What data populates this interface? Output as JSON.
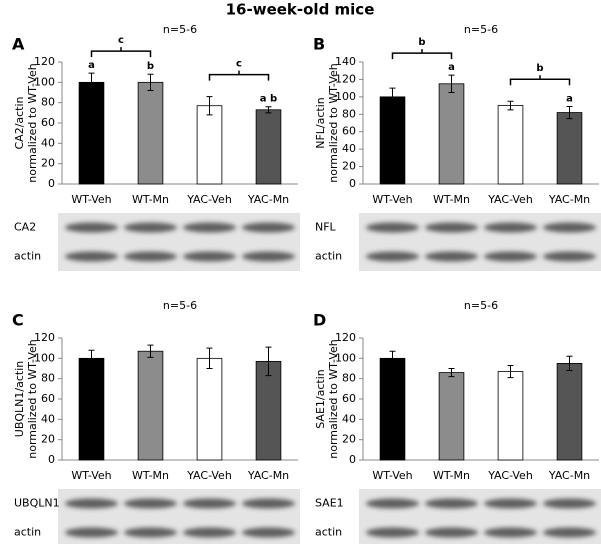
{
  "title": "16-week-old mice",
  "chart_data": [
    {
      "type": "bar",
      "panel": "A",
      "subtitle": "n=5-6",
      "ylabel": [
        "CA2/actin",
        "normalized to WT-Veh"
      ],
      "categories": [
        "WT-Veh",
        "WT-Mn",
        "YAC-Veh",
        "YAC-Mn"
      ],
      "values": [
        100,
        100,
        77,
        73
      ],
      "errors": [
        9,
        8,
        9,
        3
      ],
      "colors": [
        "#000000",
        "#8c8c8c",
        "#ffffff",
        "#555555"
      ],
      "ylim": [
        0,
        120
      ],
      "yticks": [
        0,
        20,
        40,
        60,
        80,
        100,
        120
      ],
      "bar_letters": [
        "a",
        "b",
        null,
        "a b"
      ],
      "brackets": [
        {
          "from": 0,
          "to": 1,
          "label": "c"
        },
        {
          "from": 2,
          "to": 3,
          "label": "c"
        }
      ],
      "blot_labels": [
        "CA2",
        "actin"
      ]
    },
    {
      "type": "bar",
      "panel": "B",
      "subtitle": "n=5-6",
      "ylabel": [
        "NFL/actin",
        "normalized to WT-Veh"
      ],
      "categories": [
        "WT-Veh",
        "WT-Mn",
        "YAC-Veh",
        "YAC-Mn"
      ],
      "values": [
        100,
        115,
        90,
        82
      ],
      "errors": [
        10,
        10,
        5,
        7
      ],
      "colors": [
        "#000000",
        "#8c8c8c",
        "#ffffff",
        "#555555"
      ],
      "ylim": [
        0,
        140
      ],
      "yticks": [
        0,
        20,
        40,
        60,
        80,
        100,
        120,
        140
      ],
      "bar_letters": [
        null,
        "a",
        null,
        "a"
      ],
      "brackets": [
        {
          "from": 0,
          "to": 1,
          "label": "b"
        },
        {
          "from": 2,
          "to": 3,
          "label": "b"
        }
      ],
      "blot_labels": [
        "NFL",
        "actin"
      ]
    },
    {
      "type": "bar",
      "panel": "C",
      "subtitle": "n=5-6",
      "ylabel": [
        "UBQLN1/actin",
        "normalized to WT-Veh"
      ],
      "categories": [
        "WT-Veh",
        "WT-Mn",
        "YAC-Veh",
        "YAC-Mn"
      ],
      "values": [
        100,
        107,
        100,
        97
      ],
      "errors": [
        8,
        6,
        10,
        14
      ],
      "colors": [
        "#000000",
        "#8c8c8c",
        "#ffffff",
        "#555555"
      ],
      "ylim": [
        0,
        120
      ],
      "yticks": [
        0,
        20,
        40,
        60,
        80,
        100,
        120
      ],
      "blot_labels": [
        "UBQLN1",
        "actin"
      ]
    },
    {
      "type": "bar",
      "panel": "D",
      "subtitle": "n=5-6",
      "ylabel": [
        "SAE1/actin",
        "normalized to WT-Veh"
      ],
      "categories": [
        "WT-Veh",
        "WT-Mn",
        "YAC-Veh",
        "YAC-Mn"
      ],
      "values": [
        100,
        86,
        87,
        95
      ],
      "errors": [
        7,
        4,
        6,
        7
      ],
      "colors": [
        "#000000",
        "#8c8c8c",
        "#ffffff",
        "#555555"
      ],
      "ylim": [
        0,
        120
      ],
      "yticks": [
        0,
        20,
        40,
        60,
        80,
        100,
        120
      ],
      "blot_labels": [
        "SAE1",
        "actin"
      ]
    }
  ]
}
